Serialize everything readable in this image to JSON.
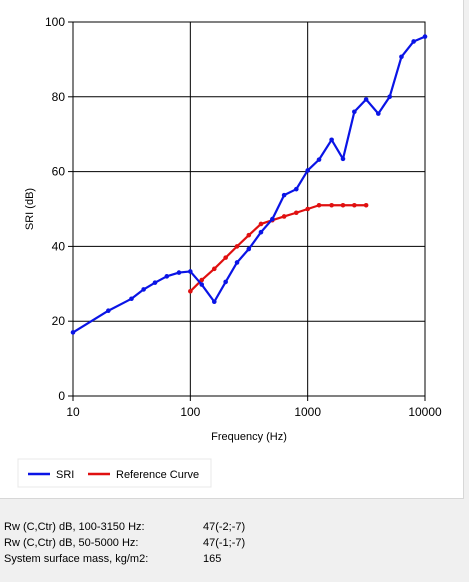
{
  "chart_data": {
    "type": "line",
    "xlabel": "Frequency (Hz)",
    "ylabel": "SRI (dB)",
    "x_scale": "log",
    "xlim": [
      10,
      10000
    ],
    "ylim": [
      0,
      100
    ],
    "x_ticks": [
      "10",
      "100",
      "1000",
      "10000"
    ],
    "y_ticks": [
      "0",
      "20",
      "40",
      "60",
      "80",
      "100"
    ],
    "grid": true,
    "legend_position": "bottom-left",
    "series": [
      {
        "name": "SRI",
        "color": "#0a14e6",
        "x": [
          10,
          20,
          31.5,
          40,
          50,
          63,
          80,
          100,
          125,
          160,
          200,
          250,
          315,
          400,
          500,
          630,
          800,
          1000,
          1250,
          1600,
          2000,
          2500,
          3150,
          4000,
          5000,
          6300,
          8000,
          10000
        ],
        "y": [
          17,
          22.8,
          26,
          28.5,
          30.3,
          32,
          33,
          33.3,
          29.8,
          25.2,
          30.5,
          35.7,
          39.3,
          43.8,
          47.3,
          53.7,
          55.3,
          60.3,
          63.2,
          68.5,
          63.4,
          76,
          79.3,
          75.5,
          80,
          90.7,
          94.8,
          96.1
        ]
      },
      {
        "name": "Reference Curve",
        "color": "#e01010",
        "x": [
          100,
          125,
          160,
          200,
          250,
          315,
          400,
          500,
          630,
          800,
          1000,
          1250,
          1600,
          2000,
          2500,
          3150
        ],
        "y": [
          28,
          31,
          34,
          37,
          40,
          43,
          46,
          47,
          48,
          49,
          50,
          51,
          51,
          51,
          51,
          51
        ]
      }
    ]
  },
  "info": {
    "rows": [
      {
        "label": "Rw (C,Ctr) dB, 100-3150 Hz:",
        "value": "47(-2;-7)"
      },
      {
        "label": "Rw (C,Ctr) dB, 50-5000 Hz:",
        "value": "47(-1;-7)"
      },
      {
        "label": "System surface mass, kg/m2:",
        "value": "165"
      }
    ]
  }
}
